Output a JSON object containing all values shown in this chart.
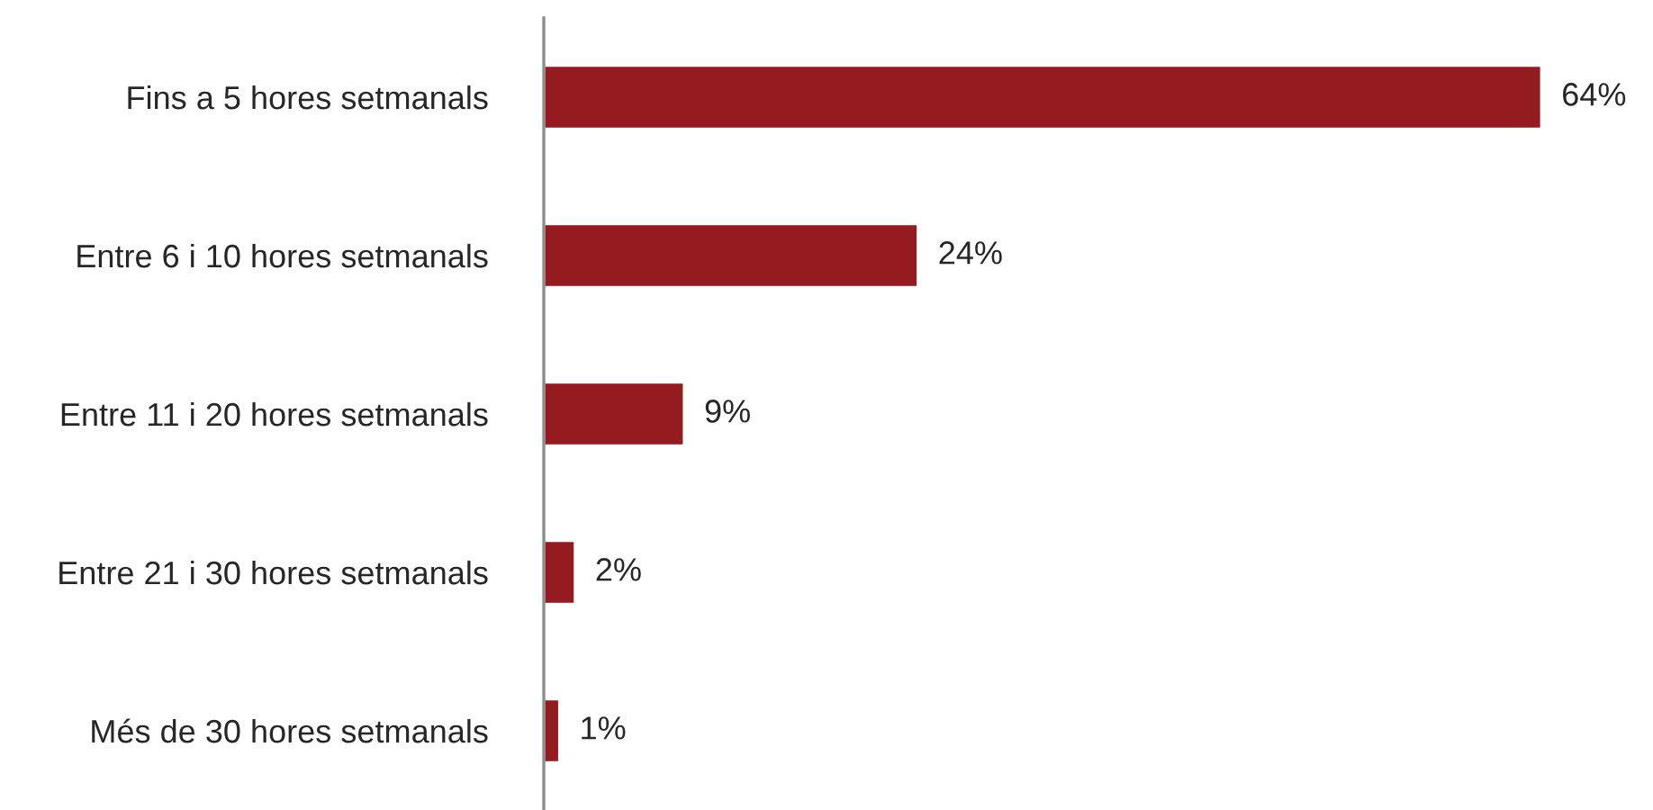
{
  "chart_data": {
    "type": "bar",
    "orientation": "horizontal",
    "categories": [
      "Fins a 5 hores setmanals",
      "Entre 6 i 10 hores setmanals",
      "Entre 11 i 20 hores setmanals",
      "Entre 21 i 30 hores setmanals",
      "Més de 30 hores setmanals"
    ],
    "values": [
      64,
      24,
      9,
      2,
      1
    ],
    "value_labels": [
      "64%",
      "24%",
      "9%",
      "2%",
      "1%"
    ],
    "color": "#941b1f"
  }
}
